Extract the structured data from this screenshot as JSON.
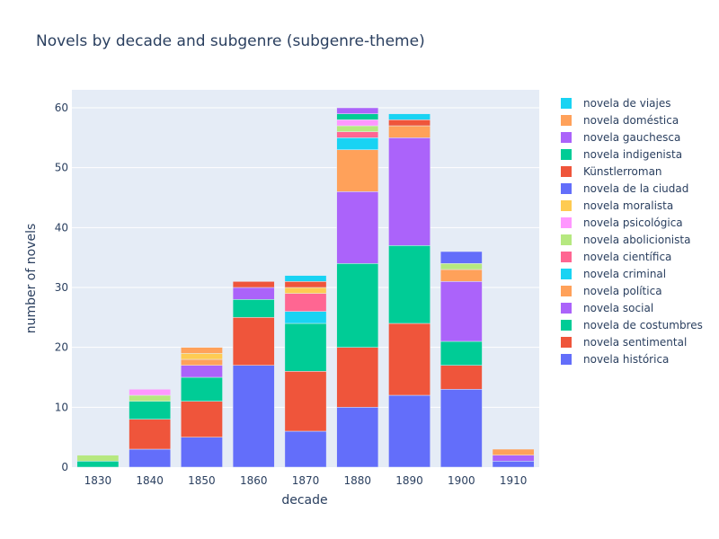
{
  "chart_data": {
    "type": "bar",
    "barmode": "stack",
    "title": "Novels by decade and subgenre (subgenre-theme)",
    "xlabel": "decade",
    "ylabel": "number of novels",
    "ylim": [
      0,
      63
    ],
    "yticks": [
      0,
      10,
      20,
      30,
      40,
      50,
      60
    ],
    "grid": true,
    "legend_position": "right",
    "categories": [
      "1830",
      "1840",
      "1850",
      "1860",
      "1870",
      "1880",
      "1890",
      "1900",
      "1910"
    ],
    "series": [
      {
        "name": "novela histórica",
        "color": "#636efa",
        "values": [
          0,
          3,
          5,
          17,
          6,
          10,
          12,
          13,
          1
        ]
      },
      {
        "name": "novela sentimental",
        "color": "#EF553B",
        "values": [
          0,
          5,
          6,
          8,
          10,
          10,
          12,
          4,
          0
        ]
      },
      {
        "name": "novela de costumbres",
        "color": "#00cc96",
        "values": [
          1,
          3,
          4,
          3,
          8,
          14,
          13,
          4,
          0
        ]
      },
      {
        "name": "novela social",
        "color": "#ab63fa",
        "values": [
          0,
          0,
          2,
          2,
          0,
          12,
          18,
          10,
          1
        ]
      },
      {
        "name": "novela política",
        "color": "#FFA15A",
        "values": [
          0,
          0,
          1,
          0,
          0,
          7,
          2,
          2,
          1
        ]
      },
      {
        "name": "novela criminal",
        "color": "#19d3f3",
        "values": [
          0,
          0,
          0,
          0,
          2,
          2,
          0,
          0,
          0
        ]
      },
      {
        "name": "novela científica",
        "color": "#FF6692",
        "values": [
          0,
          0,
          0,
          0,
          3,
          1,
          0,
          0,
          0
        ]
      },
      {
        "name": "novela abolicionista",
        "color": "#B6E880",
        "values": [
          1,
          1,
          0,
          0,
          0,
          1,
          0,
          1,
          0
        ]
      },
      {
        "name": "novela psicológica",
        "color": "#FF97FF",
        "values": [
          0,
          1,
          0,
          0,
          0,
          1,
          0,
          0,
          0
        ]
      },
      {
        "name": "novela moralista",
        "color": "#FECB52",
        "values": [
          0,
          0,
          1,
          0,
          1,
          0,
          0,
          0,
          0
        ]
      },
      {
        "name": "novela de la ciudad",
        "color": "#636efa",
        "values": [
          0,
          0,
          0,
          0,
          0,
          0,
          0,
          2,
          0
        ]
      },
      {
        "name": "Künstlerroman",
        "color": "#EF553B",
        "values": [
          0,
          0,
          0,
          1,
          1,
          0,
          1,
          0,
          0
        ]
      },
      {
        "name": "novela indigenista",
        "color": "#00cc96",
        "values": [
          0,
          0,
          0,
          0,
          0,
          1,
          0,
          0,
          0
        ]
      },
      {
        "name": "novela gauchesca",
        "color": "#ab63fa",
        "values": [
          0,
          0,
          0,
          0,
          0,
          1,
          0,
          0,
          0
        ]
      },
      {
        "name": "novela doméstica",
        "color": "#FFA15A",
        "values": [
          0,
          0,
          1,
          0,
          0,
          0,
          0,
          0,
          0
        ]
      },
      {
        "name": "novela de viajes",
        "color": "#19d3f3",
        "values": [
          0,
          0,
          0,
          0,
          1,
          0,
          1,
          0,
          0
        ]
      }
    ]
  }
}
